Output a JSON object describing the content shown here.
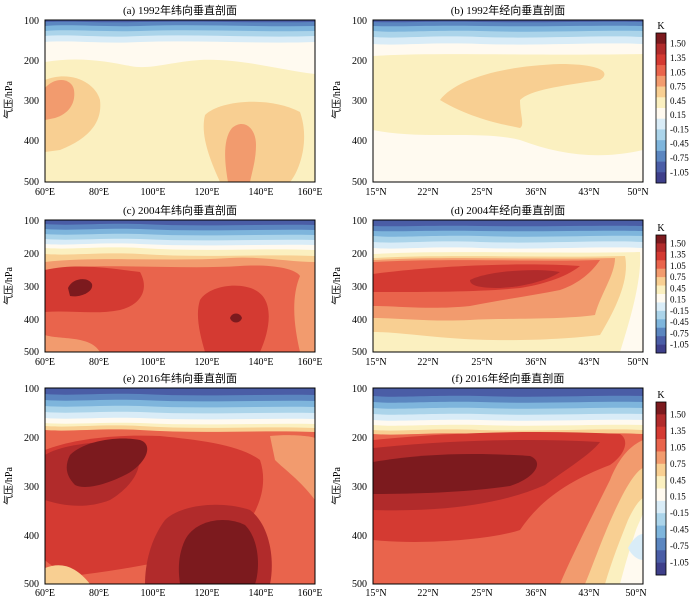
{
  "colorbar": {
    "unit": "K",
    "levels": [
      "1.50",
      "1.35",
      "1.05",
      "0.75",
      "0.45",
      "0.15",
      "-0.15",
      "-0.45",
      "-0.75",
      "-1.05"
    ],
    "colors": [
      "#7c1a1e",
      "#b12b2b",
      "#d43a32",
      "#e9644c",
      "#f29b6e",
      "#f8cf92",
      "#fbf0c0",
      "#fffaf0",
      "#d9ecf7",
      "#abd4ea",
      "#7eb5dc",
      "#5b86c0",
      "#4a5da6",
      "#3e3f8a"
    ]
  },
  "colors": {
    "t_neg105": "#3e3f8a",
    "t_neg09": "#4a5da6",
    "t_neg075": "#5b86c0",
    "t_neg06": "#7eb5dc",
    "t_neg045": "#abd4ea",
    "t_neg03": "#d9ecf7",
    "t_0": "#fffaf0",
    "t_015": "#fbf0c0",
    "t_045": "#f8cf92",
    "t_075": "#f29b6e",
    "t_105": "#e9644c",
    "t_12": "#d43a32",
    "t_135": "#b12b2b",
    "t_15": "#7c1a1e"
  },
  "chart_data": [
    {
      "type": "heatmap",
      "title": "(a) 1992年纬向垂直剖面",
      "ylabel": "气压/hPa",
      "xticks": [
        "60°E",
        "80°E",
        "100°E",
        "120°E",
        "140°E",
        "160°E"
      ],
      "yticks": [
        "100",
        "200",
        "300",
        "400",
        "500"
      ],
      "xlim": [
        60,
        160
      ],
      "ylim": [
        100,
        500
      ],
      "field_summary": [
        {
          "pressure": 100,
          "value": -1.05
        },
        {
          "pressure": 150,
          "value": -0.3
        },
        {
          "pressure": 200,
          "value": 0.15
        },
        {
          "pressure": 280,
          "value": 0.45,
          "local_max": {
            "lon": 68,
            "value": 0.75
          }
        },
        {
          "pressure": 400,
          "value": 0.45,
          "local_max": {
            "lon": 128,
            "value": 0.75
          }
        }
      ]
    },
    {
      "type": "heatmap",
      "title": "(b) 1992年经向垂直剖面",
      "ylabel": "气压/hPa",
      "xticks": [
        "15°N",
        "22°N",
        "25°N",
        "36°N",
        "43°N",
        "50°N"
      ],
      "yticks": [
        "100",
        "200",
        "300",
        "400",
        "500"
      ],
      "xlim": [
        15,
        50
      ],
      "ylim": [
        100,
        500
      ],
      "field_summary": [
        {
          "pressure": 100,
          "value": -1.05
        },
        {
          "pressure": 150,
          "value": -0.3
        },
        {
          "pressure": 200,
          "value": 0.15
        },
        {
          "pressure": 300,
          "value": 0.45
        },
        {
          "pressure": 450,
          "value": 0.15
        }
      ]
    },
    {
      "type": "heatmap",
      "title": "(c) 2004年纬向垂直剖面",
      "ylabel": "气压/hPa",
      "xticks": [
        "60°E",
        "80°E",
        "100°E",
        "120°E",
        "140°E",
        "160°E"
      ],
      "yticks": [
        "100",
        "200",
        "300",
        "400",
        "500"
      ],
      "xlim": [
        60,
        160
      ],
      "ylim": [
        100,
        500
      ],
      "field_summary": [
        {
          "pressure": 100,
          "value": -1.05
        },
        {
          "pressure": 150,
          "value": -0.45
        },
        {
          "pressure": 200,
          "value": 0.75
        },
        {
          "pressure": 300,
          "value": 1.05,
          "local_max": {
            "lon": 75,
            "value": 1.5
          }
        },
        {
          "pressure": 400,
          "value": 1.2,
          "local_max": {
            "lon": 128,
            "value": 1.5
          }
        },
        {
          "pressure": 480,
          "value": 0.75
        }
      ]
    },
    {
      "type": "heatmap",
      "title": "(d) 2004年经向垂直剖面",
      "ylabel": "气压/hPa",
      "xticks": [
        "15°N",
        "22°N",
        "25°N",
        "36°N",
        "43°N",
        "50°N"
      ],
      "yticks": [
        "100",
        "200",
        "300",
        "400",
        "500"
      ],
      "xlim": [
        15,
        50
      ],
      "ylim": [
        100,
        500
      ],
      "field_summary": [
        {
          "pressure": 100,
          "value": -1.05
        },
        {
          "pressure": 150,
          "value": -0.3
        },
        {
          "pressure": 200,
          "value": 0.75
        },
        {
          "pressure": 270,
          "value": 1.2,
          "local_max": {
            "lat": 30,
            "value": 1.35
          }
        },
        {
          "pressure": 400,
          "value": 0.45
        },
        {
          "pressure": 480,
          "value": 0.15
        }
      ]
    },
    {
      "type": "heatmap",
      "title": "(e) 2016年纬向垂直剖面",
      "ylabel": "气压/hPa",
      "xticks": [
        "60°E",
        "80°E",
        "100°E",
        "120°E",
        "140°E",
        "160°E"
      ],
      "yticks": [
        "100",
        "200",
        "300",
        "400",
        "500"
      ],
      "xlim": [
        60,
        160
      ],
      "ylim": [
        100,
        500
      ],
      "field_summary": [
        {
          "pressure": 100,
          "value": -1.05
        },
        {
          "pressure": 150,
          "value": -0.45
        },
        {
          "pressure": 200,
          "value": 1.05
        },
        {
          "pressure": 260,
          "value": 1.35,
          "local_max": {
            "lon": 85,
            "value": 1.5
          }
        },
        {
          "pressure": 420,
          "value": 1.2,
          "local_max": {
            "lon": 125,
            "value": 1.5
          }
        }
      ]
    },
    {
      "type": "heatmap",
      "title": "(f) 2016年经向垂直剖面",
      "ylabel": "气压/hPa",
      "xticks": [
        "15°N",
        "22°N",
        "25°N",
        "36°N",
        "43°N",
        "50°N"
      ],
      "yticks": [
        "100",
        "200",
        "300",
        "400",
        "500"
      ],
      "xlim": [
        15,
        50
      ],
      "ylim": [
        100,
        500
      ],
      "field_summary": [
        {
          "pressure": 100,
          "value": -1.05
        },
        {
          "pressure": 150,
          "value": -0.3
        },
        {
          "pressure": 200,
          "value": 1.05
        },
        {
          "pressure": 290,
          "value": 1.35,
          "local_max": {
            "lat": 25,
            "value": 1.5
          }
        },
        {
          "pressure": 400,
          "value": 1.05,
          "local_min": {
            "lat": 48,
            "value": -0.3
          }
        }
      ]
    }
  ]
}
